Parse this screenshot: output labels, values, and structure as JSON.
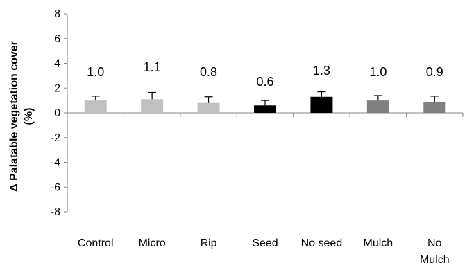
{
  "chart_data": {
    "type": "bar",
    "title": "",
    "xlabel": "",
    "ylabel_line1": "Δ Palatable vegetation cover",
    "ylabel_line2": "(%)",
    "categories": [
      "Control",
      "Micro",
      "Rip",
      "Seed",
      "No seed",
      "Mulch",
      "No Mulch"
    ],
    "category_lines": [
      [
        "Control"
      ],
      [
        "Micro"
      ],
      [
        "Rip"
      ],
      [
        "Seed"
      ],
      [
        "No seed"
      ],
      [
        "Mulch"
      ],
      [
        "No",
        "Mulch"
      ]
    ],
    "values": [
      1.0,
      1.1,
      0.8,
      0.6,
      1.3,
      1.0,
      0.9
    ],
    "errors": [
      0.35,
      0.55,
      0.5,
      0.4,
      0.4,
      0.4,
      0.45
    ],
    "data_labels": [
      "1.0",
      "1.1",
      "0.8",
      "0.6",
      "1.3",
      "1.0",
      "0.9"
    ],
    "bar_colors": [
      "#c0c0c0",
      "#c0c0c0",
      "#c0c0c0",
      "#000000",
      "#000000",
      "#808080",
      "#808080"
    ],
    "ylim": [
      -8,
      8
    ],
    "yticks": [
      8,
      6,
      4,
      2,
      0,
      -2,
      -4,
      -6,
      -8
    ],
    "grid": false,
    "legend": "none"
  }
}
